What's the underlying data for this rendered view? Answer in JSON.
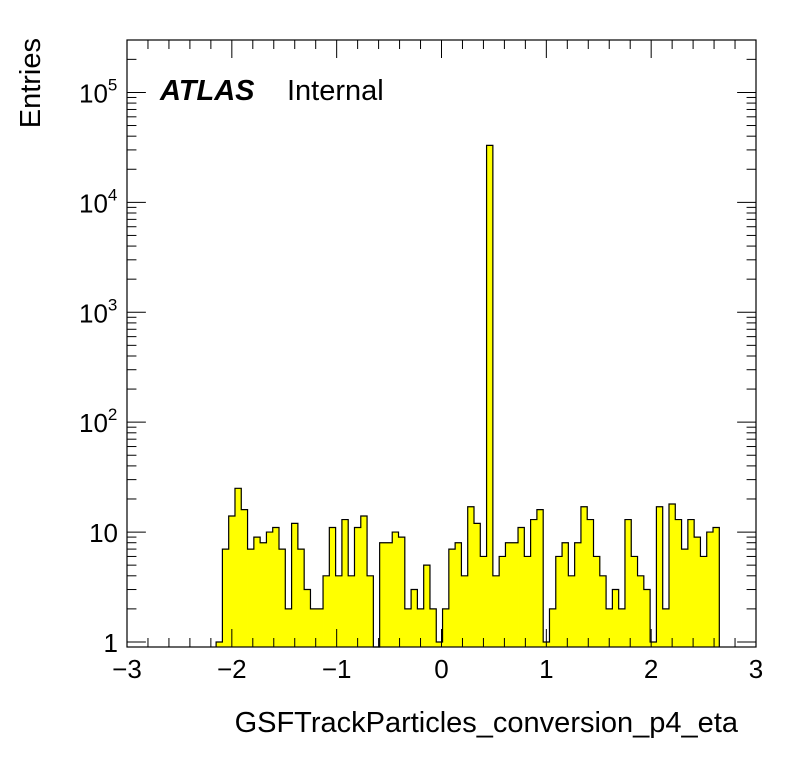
{
  "chart_data": {
    "type": "bar",
    "xlabel": "GSFTrackParticles_conversion_p4_eta",
    "ylabel": "Entries",
    "xlim": [
      -3,
      3
    ],
    "ylim": [
      0.9,
      300000
    ],
    "log_y": true,
    "grid": false,
    "legend": "none",
    "fill_color": "#ffff00",
    "line_color": "#000000",
    "label": {
      "atlas": "ATLAS",
      "status": "Internal"
    },
    "x_ticks": [
      {
        "v": -3,
        "label": "−3"
      },
      {
        "v": -2,
        "label": "−2"
      },
      {
        "v": -1,
        "label": "−1"
      },
      {
        "v": 0,
        "label": "0"
      },
      {
        "v": 1,
        "label": "1"
      },
      {
        "v": 2,
        "label": "2"
      },
      {
        "v": 3,
        "label": "3"
      }
    ],
    "y_ticks": [
      {
        "v": 1,
        "base": "1",
        "exp": ""
      },
      {
        "v": 10,
        "base": "10",
        "exp": ""
      },
      {
        "v": 100,
        "base": "10",
        "exp": "2"
      },
      {
        "v": 1000,
        "base": "10",
        "exp": "3"
      },
      {
        "v": 10000,
        "base": "10",
        "exp": "4"
      },
      {
        "v": 100000,
        "base": "10",
        "exp": "5"
      }
    ],
    "bin_start": -2.15,
    "bin_width": 0.06,
    "values": [
      1,
      7,
      14,
      25,
      16,
      7,
      9,
      8,
      10,
      11,
      7,
      2,
      12,
      7,
      3,
      2,
      2,
      4,
      11,
      4,
      13,
      4,
      11,
      14,
      4,
      0,
      8,
      8,
      10,
      9,
      2,
      3,
      2,
      5,
      2,
      1,
      2,
      7,
      8,
      4,
      17,
      12,
      6,
      33000,
      4,
      6,
      8,
      8,
      11,
      6,
      13,
      16,
      1,
      2,
      6,
      8,
      4,
      8,
      17,
      13,
      6,
      4,
      2,
      3,
      2,
      13,
      6,
      4,
      3,
      1,
      17,
      2,
      18,
      13,
      7,
      13,
      9,
      6,
      10,
      11
    ]
  }
}
